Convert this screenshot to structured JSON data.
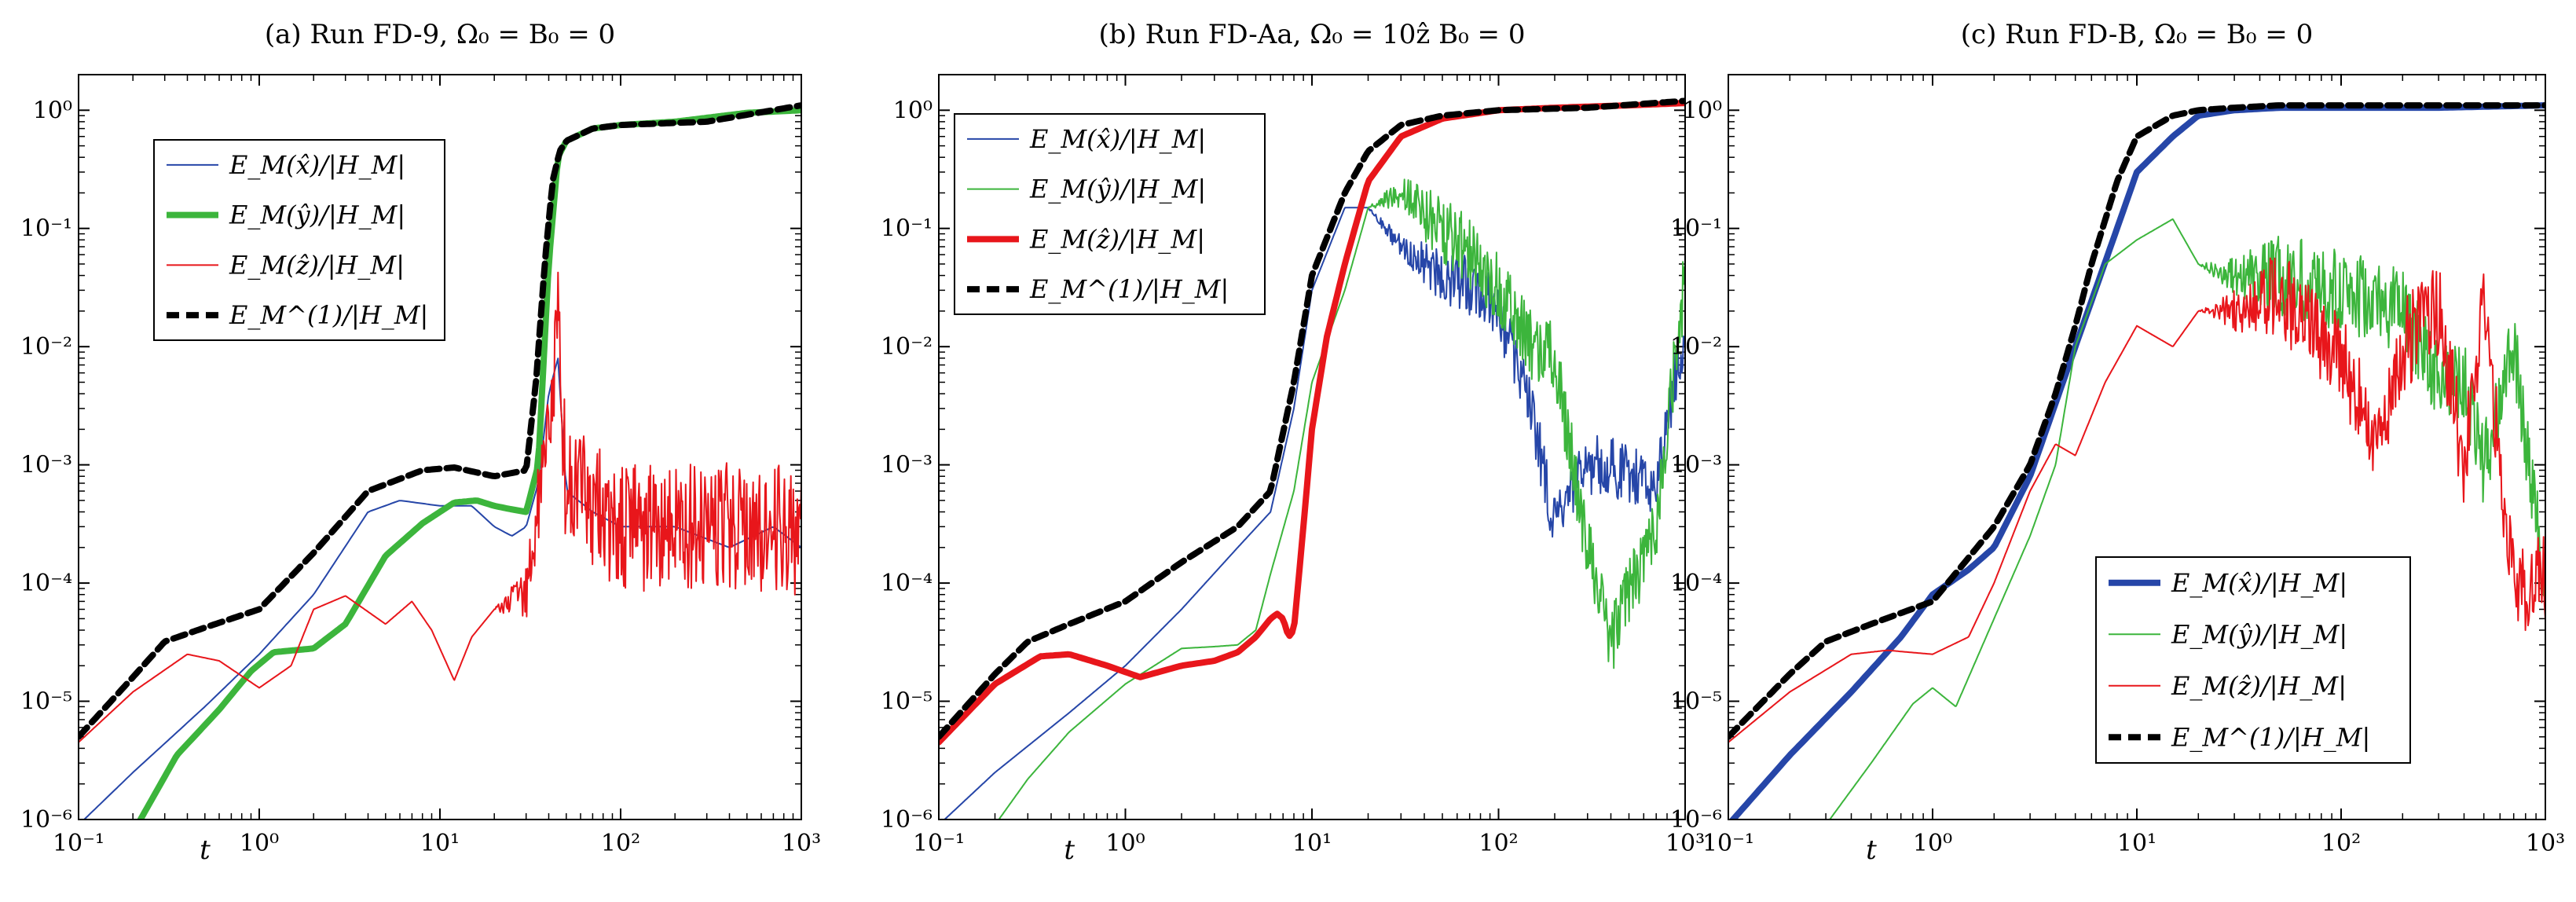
{
  "colors": {
    "blue": "#2646a8",
    "green": "#3cb53c",
    "red": "#e8161b",
    "black": "#000000"
  },
  "chart_data": [
    {
      "type": "line",
      "title": "(a) Run FD-9, Ω₀ = B₀ = 0",
      "xlabel": "t",
      "ylabel": "",
      "xscale": "log",
      "yscale": "log",
      "xlim": [
        0.1,
        1000
      ],
      "ylim": [
        1e-06,
        2
      ],
      "xticks": [
        "10⁻¹",
        "10⁰",
        "10¹",
        "10²",
        "10³"
      ],
      "yticks": [
        "10⁻⁶",
        "10⁻⁵",
        "10⁻⁴",
        "10⁻³",
        "10⁻²",
        "10⁻¹",
        "10⁰"
      ],
      "legend_position": "upper-left",
      "series": [
        {
          "name": "E_M(x̂)/|H_M|",
          "color": "blue",
          "width": "thin",
          "dash": false,
          "noise": 0,
          "x": [
            0.1,
            0.2,
            0.5,
            1,
            2,
            4,
            6,
            10,
            15,
            20,
            25,
            30,
            35,
            40,
            45,
            50,
            70,
            100,
            200,
            400,
            700,
            1000
          ],
          "y": [
            9e-07,
            2.5e-06,
            9e-06,
            2.5e-05,
            8e-05,
            0.0004,
            0.0005,
            0.00045,
            0.00045,
            0.0003,
            0.00025,
            0.0003,
            0.0007,
            0.004,
            0.008,
            0.0006,
            0.0004,
            0.0003,
            0.0003,
            0.0002,
            0.0003,
            0.0002
          ]
        },
        {
          "name": "E_M(ŷ)/|H_M|",
          "color": "green",
          "width": "thick",
          "dash": false,
          "noise": 0,
          "x": [
            0.22,
            0.35,
            0.6,
            0.9,
            1.2,
            2,
            3,
            5,
            8,
            12,
            16,
            20,
            25,
            30,
            35,
            40,
            45,
            50,
            70,
            100,
            200,
            500,
            1000
          ],
          "y": [
            1e-06,
            3.5e-06,
            8.5e-06,
            1.8e-05,
            2.6e-05,
            2.8e-05,
            4.5e-05,
            0.00017,
            0.00032,
            0.00048,
            0.0005,
            0.00045,
            0.00042,
            0.0004,
            0.001,
            0.05,
            0.4,
            0.55,
            0.7,
            0.75,
            0.8,
            0.95,
            1.0
          ]
        },
        {
          "name": "E_M(ẑ)/|H_M|",
          "color": "red",
          "width": "thin",
          "dash": false,
          "noise": 0.55,
          "x": [
            0.1,
            0.2,
            0.4,
            0.6,
            1,
            1.5,
            2,
            3,
            5,
            7,
            9,
            12,
            15,
            20,
            30,
            40,
            45,
            50,
            70,
            100,
            200,
            400,
            700,
            1000
          ],
          "y": [
            4.5e-06,
            1.2e-05,
            2.5e-05,
            2.2e-05,
            1.3e-05,
            2e-05,
            6e-05,
            7.8e-05,
            4.5e-05,
            7e-05,
            4e-05,
            1.5e-05,
            3.5e-05,
            6e-05,
            8e-05,
            0.002,
            0.015,
            0.0006,
            0.0005,
            0.0003,
            0.0003,
            0.0003,
            0.0003,
            0.00025
          ]
        },
        {
          "name": "E_M^(1)/|H_M|",
          "color": "black",
          "width": "thick",
          "dash": true,
          "noise": 0,
          "x": [
            0.1,
            0.2,
            0.3,
            0.5,
            1,
            2,
            4,
            8,
            12,
            20,
            30,
            34,
            38,
            42,
            46,
            50,
            70,
            100,
            300,
            1000
          ],
          "y": [
            5e-06,
            1.6e-05,
            3.2e-05,
            4.2e-05,
            6e-05,
            0.00018,
            0.0006,
            0.0009,
            0.00095,
            0.0008,
            0.0009,
            0.005,
            0.05,
            0.25,
            0.45,
            0.55,
            0.7,
            0.75,
            0.8,
            1.1
          ]
        }
      ]
    },
    {
      "type": "line",
      "title": "(b) Run FD-Aa, Ω₀ = 10ẑ B₀ = 0",
      "xlabel": "t",
      "ylabel": "",
      "xscale": "log",
      "yscale": "log",
      "xlim": [
        0.1,
        1000
      ],
      "ylim": [
        1e-06,
        2
      ],
      "xticks": [
        "10⁻¹",
        "10⁰",
        "10¹",
        "10²",
        "10³"
      ],
      "yticks": [
        "10⁻⁶",
        "10⁻⁵",
        "10⁻⁴",
        "10⁻³",
        "10⁻²",
        "10⁻¹",
        "10⁰"
      ],
      "legend_position": "upper-left",
      "series": [
        {
          "name": "E_M(x̂)/|H_M|",
          "color": "blue",
          "width": "thin",
          "dash": false,
          "noise": 0.25,
          "x": [
            0.1,
            0.2,
            0.5,
            1,
            2,
            4,
            6,
            8,
            10,
            15,
            20,
            30,
            50,
            80,
            100,
            150,
            200,
            300,
            400,
            500,
            700,
            1000
          ],
          "y": [
            9e-07,
            2.5e-06,
            8e-06,
            2e-05,
            6e-05,
            0.0002,
            0.0004,
            0.003,
            0.03,
            0.15,
            0.15,
            0.07,
            0.04,
            0.03,
            0.02,
            0.003,
            0.0003,
            0.001,
            0.001,
            0.0008,
            0.0007,
            0.015
          ]
        },
        {
          "name": "E_M(ŷ)/|H_M|",
          "color": "green",
          "width": "thin",
          "dash": false,
          "noise": 0.3,
          "x": [
            0.2,
            0.3,
            0.5,
            1,
            2,
            3,
            4,
            5,
            6,
            8,
            10,
            15,
            20,
            30,
            50,
            80,
            100,
            150,
            200,
            300,
            400,
            500,
            700,
            1000
          ],
          "y": [
            9e-07,
            2.2e-06,
            5.5e-06,
            1.4e-05,
            2.8e-05,
            2.9e-05,
            3e-05,
            4e-05,
            0.00012,
            0.0006,
            0.005,
            0.03,
            0.15,
            0.2,
            0.1,
            0.05,
            0.03,
            0.01,
            0.008,
            0.0002,
            3e-05,
            8e-05,
            0.0003,
            0.04
          ]
        },
        {
          "name": "E_M(ẑ)/|H_M|",
          "color": "red",
          "width": "thick",
          "dash": false,
          "noise": 0,
          "x": [
            0.1,
            0.2,
            0.35,
            0.5,
            0.8,
            1.2,
            2,
            3,
            4,
            5,
            6,
            6.5,
            7,
            7.5,
            8,
            9,
            10,
            12,
            15,
            20,
            30,
            50,
            100,
            200,
            500,
            1000
          ],
          "y": [
            4.5e-06,
            1.4e-05,
            2.4e-05,
            2.5e-05,
            2e-05,
            1.6e-05,
            2e-05,
            2.2e-05,
            2.6e-05,
            3.5e-05,
            5e-05,
            5.5e-05,
            5e-05,
            3.5e-05,
            4e-05,
            0.0003,
            0.002,
            0.012,
            0.05,
            0.25,
            0.6,
            0.85,
            1.0,
            1.05,
            1.1,
            1.15
          ]
        },
        {
          "name": "E_M^(1)/|H_M|",
          "color": "black",
          "width": "thick",
          "dash": true,
          "noise": 0,
          "x": [
            0.1,
            0.2,
            0.3,
            0.5,
            1,
            2,
            4,
            6,
            8,
            10,
            15,
            20,
            30,
            50,
            100,
            300,
            1000
          ],
          "y": [
            5e-06,
            1.7e-05,
            3.2e-05,
            4.5e-05,
            7e-05,
            0.00015,
            0.0003,
            0.0006,
            0.005,
            0.04,
            0.2,
            0.45,
            0.75,
            0.9,
            1.0,
            1.05,
            1.2
          ]
        }
      ]
    },
    {
      "type": "line",
      "title": "(c) Run FD-B, Ω₀ = B₀ = 0",
      "xlabel": "t",
      "ylabel": "",
      "xscale": "log",
      "yscale": "log",
      "xlim": [
        0.1,
        1000
      ],
      "ylim": [
        1e-06,
        2
      ],
      "xticks": [
        "10⁻¹",
        "10⁰",
        "10¹",
        "10²",
        "10³"
      ],
      "yticks": [
        "10⁻⁶",
        "10⁻⁵",
        "10⁻⁴",
        "10⁻³",
        "10⁻²",
        "10⁻¹",
        "10⁰"
      ],
      "legend_position": "lower-right",
      "series": [
        {
          "name": "E_M(x̂)/|H_M|",
          "color": "blue",
          "width": "thick",
          "dash": false,
          "noise": 0,
          "x": [
            0.1,
            0.2,
            0.4,
            0.7,
            1,
            1.5,
            2,
            3,
            5,
            8,
            10,
            15,
            20,
            30,
            50,
            100,
            300,
            1000
          ],
          "y": [
            9e-07,
            3.5e-06,
            1.2e-05,
            3.5e-05,
            8e-05,
            0.00013,
            0.0002,
            0.0008,
            0.01,
            0.1,
            0.3,
            0.6,
            0.9,
            1.0,
            1.05,
            1.05,
            1.05,
            1.1
          ]
        },
        {
          "name": "E_M(ŷ)/|H_M|",
          "color": "green",
          "width": "thin",
          "dash": false,
          "noise": 0.35,
          "x": [
            0.3,
            0.5,
            0.8,
            1,
            1.3,
            2,
            3,
            4,
            5,
            7,
            10,
            15,
            20,
            30,
            50,
            100,
            200,
            300,
            400,
            500,
            700,
            1000
          ],
          "y": [
            9e-07,
            3e-06,
            9.5e-06,
            1.3e-05,
            9e-06,
            5e-05,
            0.00025,
            0.001,
            0.01,
            0.05,
            0.08,
            0.12,
            0.05,
            0.04,
            0.04,
            0.03,
            0.02,
            0.005,
            0.005,
            0.001,
            0.01,
            0.0001
          ]
        },
        {
          "name": "E_M(ẑ)/|H_M|",
          "color": "red",
          "width": "thin",
          "dash": false,
          "noise": 0.4,
          "x": [
            0.1,
            0.2,
            0.4,
            0.6,
            1,
            1.5,
            2,
            3,
            4,
            5,
            7,
            10,
            15,
            20,
            30,
            50,
            100,
            150,
            200,
            300,
            400,
            500,
            700,
            1000
          ],
          "y": [
            4.5e-06,
            1.2e-05,
            2.5e-05,
            2.7e-05,
            2.5e-05,
            3.5e-05,
            0.0001,
            0.0006,
            0.0015,
            0.0012,
            0.005,
            0.015,
            0.01,
            0.02,
            0.02,
            0.03,
            0.008,
            0.0015,
            0.01,
            0.02,
            0.001,
            0.02,
            0.0001,
            0.0001
          ]
        },
        {
          "name": "E_M^(1)/|H_M|",
          "color": "black",
          "width": "thick",
          "dash": true,
          "noise": 0,
          "x": [
            0.1,
            0.2,
            0.3,
            0.5,
            1,
            2,
            3,
            4,
            5,
            6,
            8,
            10,
            15,
            20,
            30,
            50,
            100,
            300,
            1000
          ],
          "y": [
            5e-06,
            1.7e-05,
            3.2e-05,
            4.5e-05,
            7e-05,
            0.0003,
            0.001,
            0.004,
            0.015,
            0.05,
            0.25,
            0.6,
            0.9,
            1.0,
            1.05,
            1.1,
            1.1,
            1.1,
            1.1
          ]
        }
      ]
    }
  ]
}
